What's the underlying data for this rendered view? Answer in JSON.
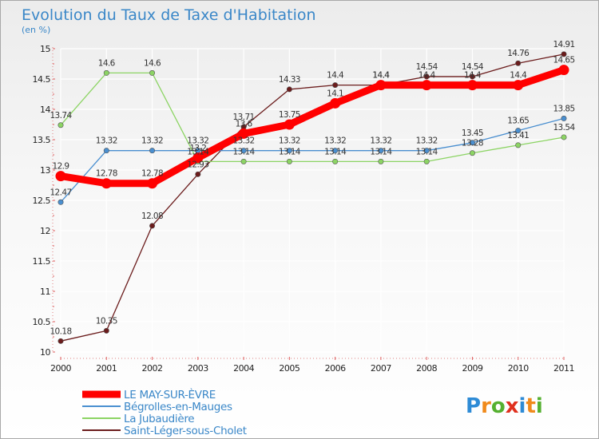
{
  "colors": {
    "series": [
      "#ff0000",
      "#4a8fd0",
      "#8cd464",
      "#6b1c1c"
    ],
    "grid": "#ffffff",
    "title": "#3a87c8"
  },
  "logo": {
    "text": "Proxiti",
    "letters": [
      "P",
      "r",
      "o",
      "x",
      "i",
      "t",
      "i"
    ],
    "letter_colors": [
      "#2e8bd6",
      "#f08a1c",
      "#55b030",
      "#e0301e",
      "#2e8bd6",
      "#f08a1c",
      "#55b030"
    ]
  },
  "chart_data": {
    "type": "line",
    "title": "Evolution du Taux de Taxe d'Habitation",
    "subtitle": "(en %)",
    "x": [
      "2000",
      "2001",
      "2002",
      "2003",
      "2004",
      "2005",
      "2006",
      "2007",
      "2008",
      "2009",
      "2010",
      "2011"
    ],
    "ylim": [
      10,
      15
    ],
    "yticks": [
      "10",
      "10.5",
      "11",
      "11.5",
      "12",
      "12.5",
      "13",
      "13.5",
      "14",
      "14.5",
      "15"
    ],
    "grid": true,
    "legend_position": "bottom-left",
    "series": [
      {
        "name": "LE MAY-SUR-ÈVRE",
        "values": [
          12.9,
          12.78,
          12.78,
          13.2,
          13.6,
          13.75,
          14.1,
          14.4,
          14.4,
          14.4,
          14.4,
          14.65
        ],
        "labels": [
          "12.9",
          "12.78",
          "12.78",
          "13.2",
          "13.6",
          "13.75",
          "14.1",
          "14.4",
          "14.4",
          "14.4",
          "14.4",
          "14.65"
        ]
      },
      {
        "name": "Bégrolles-en-Mauges",
        "values": [
          12.47,
          13.32,
          13.32,
          13.32,
          13.32,
          13.32,
          13.32,
          13.32,
          13.32,
          13.45,
          13.65,
          13.85
        ],
        "labels": [
          "12.47",
          "13.32",
          "13.32",
          "13.32",
          "13.32",
          "13.32",
          "13.32",
          "13.32",
          "13.32",
          "13.45",
          "13.65",
          "13.85"
        ]
      },
      {
        "name": "La Jubaudière",
        "values": [
          13.74,
          14.6,
          14.6,
          13.14,
          13.14,
          13.14,
          13.14,
          13.14,
          13.14,
          13.28,
          13.41,
          13.54
        ],
        "labels": [
          "13.74",
          "14.6",
          "14.6",
          "13.14",
          "13.14",
          "13.14",
          "13.14",
          "13.14",
          "13.14",
          "13.28",
          "13.41",
          "13.54"
        ]
      },
      {
        "name": "Saint-Léger-sous-Cholet",
        "values": [
          10.18,
          10.35,
          12.08,
          12.93,
          13.71,
          14.33,
          14.4,
          14.4,
          14.54,
          14.54,
          14.76,
          14.91
        ],
        "labels": [
          "10.18",
          "10.35",
          "12.08",
          "12.93",
          "13.71",
          "14.33",
          "14.4",
          "14.4",
          "14.54",
          "14.54",
          "14.76",
          "14.91"
        ]
      }
    ]
  }
}
